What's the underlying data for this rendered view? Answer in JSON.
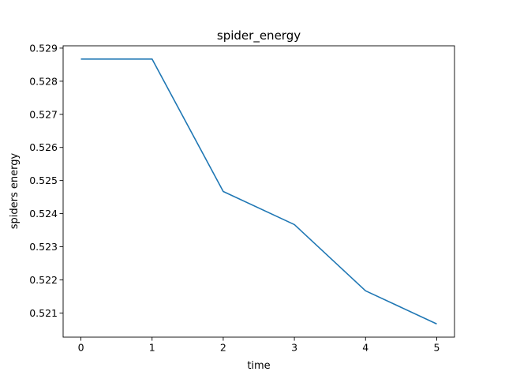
{
  "chart_data": {
    "type": "line",
    "title": "spider_energy",
    "xlabel": "time",
    "ylabel": "spiders energy",
    "x": [
      0,
      1,
      2,
      3,
      4,
      5
    ],
    "series": [
      {
        "values": [
          0.52867,
          0.52867,
          0.52467,
          0.52367,
          0.52167,
          0.52067
        ],
        "color": "#1f77b4"
      }
    ],
    "xlim": [
      -0.25,
      5.25
    ],
    "ylim": [
      0.52027,
      0.52907
    ],
    "x_ticks": [
      0,
      1,
      2,
      3,
      4,
      5
    ],
    "x_tick_labels": [
      "0",
      "1",
      "2",
      "3",
      "4",
      "5"
    ],
    "y_ticks": [
      0.521,
      0.522,
      0.523,
      0.524,
      0.525,
      0.526,
      0.527,
      0.528,
      0.529
    ],
    "y_tick_labels": [
      "0.521",
      "0.522",
      "0.523",
      "0.524",
      "0.525",
      "0.526",
      "0.527",
      "0.528",
      "0.529"
    ],
    "grid": false,
    "legend": "none"
  }
}
